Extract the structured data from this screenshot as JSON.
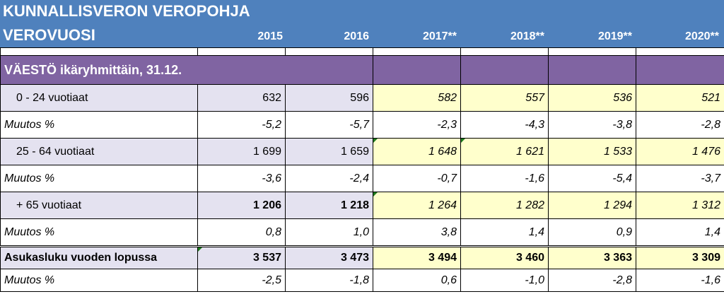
{
  "header": {
    "title": "KUNNALLISVERON VEROPOHJA",
    "subtitle": "VEROVUOSI",
    "years": [
      "2015",
      "2016",
      "2017**",
      "2018**",
      "2019**",
      "2020**"
    ]
  },
  "section": {
    "label": "VÄESTÖ ikäryhmittäin, 31.12."
  },
  "rows": [
    {
      "label": "0 - 24 vuotiaat",
      "values": [
        "632",
        "596",
        "582",
        "557",
        "536",
        "521"
      ]
    },
    {
      "label": "Muutos %",
      "values": [
        "-5,2",
        "-5,7",
        "-2,3",
        "-4,3",
        "-3,8",
        "-2,8"
      ]
    },
    {
      "label": "25 - 64 vuotiaat",
      "values": [
        "1 699",
        "1 659",
        "1 648",
        "1 621",
        "1 533",
        "1 476"
      ]
    },
    {
      "label": "Muutos %",
      "values": [
        "-3,6",
        "-2,4",
        "-0,7",
        "-1,6",
        "-5,4",
        "-3,7"
      ]
    },
    {
      "label": "+ 65 vuotiaat",
      "values": [
        "1 206",
        "1 218",
        "1 264",
        "1 282",
        "1 294",
        "1 312"
      ]
    },
    {
      "label": "Muutos %",
      "values": [
        "0,8",
        "1,0",
        "3,8",
        "1,4",
        "0,9",
        "1,4"
      ]
    },
    {
      "label": "Asukasluku vuoden lopussa",
      "values": [
        "3 537",
        "3 473",
        "3 494",
        "3 460",
        "3 363",
        "3 309"
      ]
    },
    {
      "label": "Muutos %",
      "values": [
        "-2,5",
        "-1,8",
        "0,6",
        "-1,0",
        "-2,8",
        "-1,6"
      ]
    }
  ],
  "colors": {
    "header": "#4f81bd",
    "section": "#8064a2",
    "row_label": "#e4e2f0",
    "forecast": "#ffffcc",
    "error_marker": "#1d7a1d"
  }
}
